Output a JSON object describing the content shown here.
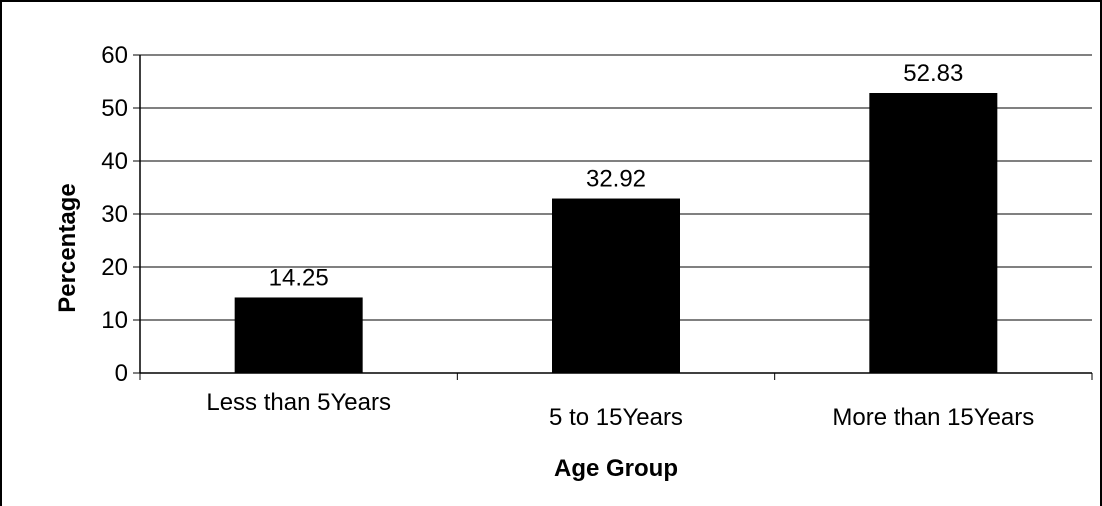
{
  "chart_data": {
    "type": "bar",
    "title": "",
    "xlabel": "Age Group",
    "ylabel": "Percentage",
    "categories": [
      "Less than 5Years",
      "5 to 15Years",
      "More than 15Years"
    ],
    "values": [
      14.25,
      32.92,
      52.83
    ],
    "value_labels": [
      "14.25",
      "32.92",
      "52.83"
    ],
    "ylim": [
      0,
      60
    ],
    "yticks": [
      "0",
      "10",
      "20",
      "30",
      "40",
      "50",
      "60"
    ],
    "grid": "horizontal",
    "legend": "none",
    "bar_color": "#000000",
    "grid_color": "#000000"
  }
}
